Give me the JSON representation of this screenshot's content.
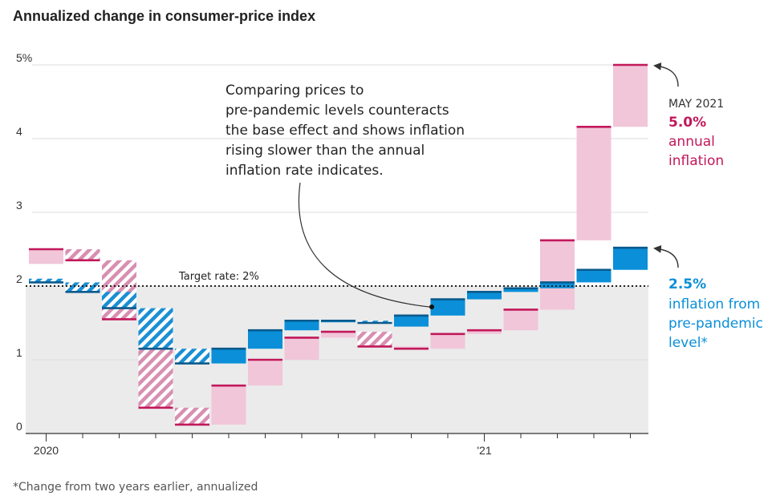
{
  "title": "Annualized change in consumer-price index",
  "footnote": "*Change from two years earlier, annualized",
  "colors": {
    "annual": "#c2185b",
    "annual_fill": "#f1c6d8",
    "prepandemic": "#0a8fd8",
    "prepandemic_dark": "#0a5a8c",
    "shade": "#ebebeb",
    "grid": "#dddddd"
  },
  "chart_data": {
    "type": "floating-bar",
    "title": "Annualized change in consumer-price index",
    "ylim": [
      0,
      5.2
    ],
    "yticks": [
      0,
      1,
      2,
      3,
      4,
      5
    ],
    "ytick_labels": [
      "0",
      "1",
      "2",
      "3",
      "4",
      "5%"
    ],
    "x_labels": [
      {
        "index": 0,
        "label": "2020"
      },
      {
        "index": 12,
        "label": "'21"
      }
    ],
    "target_rate": 2,
    "target_label": "Target rate: 2%",
    "months": [
      "2020-01",
      "2020-02",
      "2020-03",
      "2020-04",
      "2020-05",
      "2020-06",
      "2020-07",
      "2020-08",
      "2020-09",
      "2020-10",
      "2020-11",
      "2020-12",
      "2021-01",
      "2021-02",
      "2021-03",
      "2021-04",
      "2021-05"
    ],
    "series": [
      {
        "name": "annual inflation",
        "baseline": "prior-month value",
        "values": [
          2.5,
          2.35,
          1.55,
          0.35,
          0.12,
          0.65,
          1.0,
          1.3,
          1.38,
          1.18,
          1.15,
          1.35,
          1.4,
          1.68,
          2.62,
          4.16,
          5.0
        ],
        "starts": [
          2.3,
          2.5,
          2.35,
          1.55,
          0.35,
          0.12,
          0.65,
          1.0,
          1.3,
          1.38,
          1.18,
          1.15,
          1.35,
          1.4,
          1.68,
          2.62,
          4.16
        ],
        "hatched": [
          false,
          true,
          true,
          true,
          true,
          false,
          false,
          false,
          false,
          true,
          false,
          false,
          false,
          false,
          false,
          false,
          false
        ]
      },
      {
        "name": "inflation from pre-pandemic level",
        "values": [
          2.05,
          1.92,
          1.7,
          1.15,
          0.95,
          1.15,
          1.4,
          1.53,
          1.53,
          1.5,
          1.6,
          1.82,
          1.92,
          1.97,
          2.05,
          2.22,
          2.52
        ],
        "starts": [
          2.1,
          2.05,
          1.92,
          1.7,
          1.15,
          0.95,
          1.15,
          1.4,
          1.53,
          1.53,
          1.45,
          1.6,
          1.82,
          1.92,
          1.97,
          2.05,
          2.22
        ],
        "hatched": [
          true,
          true,
          true,
          true,
          true,
          false,
          false,
          false,
          false,
          true,
          false,
          false,
          false,
          false,
          false,
          false,
          false
        ]
      }
    ],
    "annotations": {
      "note_lines": [
        "Comparing prices to",
        "pre-pandemic levels counteracts",
        "the base effect and shows inflation",
        "rising slower than the annual",
        "inflation rate indicates."
      ],
      "may_label": "MAY 2021",
      "annual_value": "5.0%",
      "annual_lines": [
        "annual",
        "inflation"
      ],
      "pre_value": "2.5%",
      "pre_lines": [
        "inflation from",
        "pre-pandemic",
        "level*"
      ]
    }
  }
}
